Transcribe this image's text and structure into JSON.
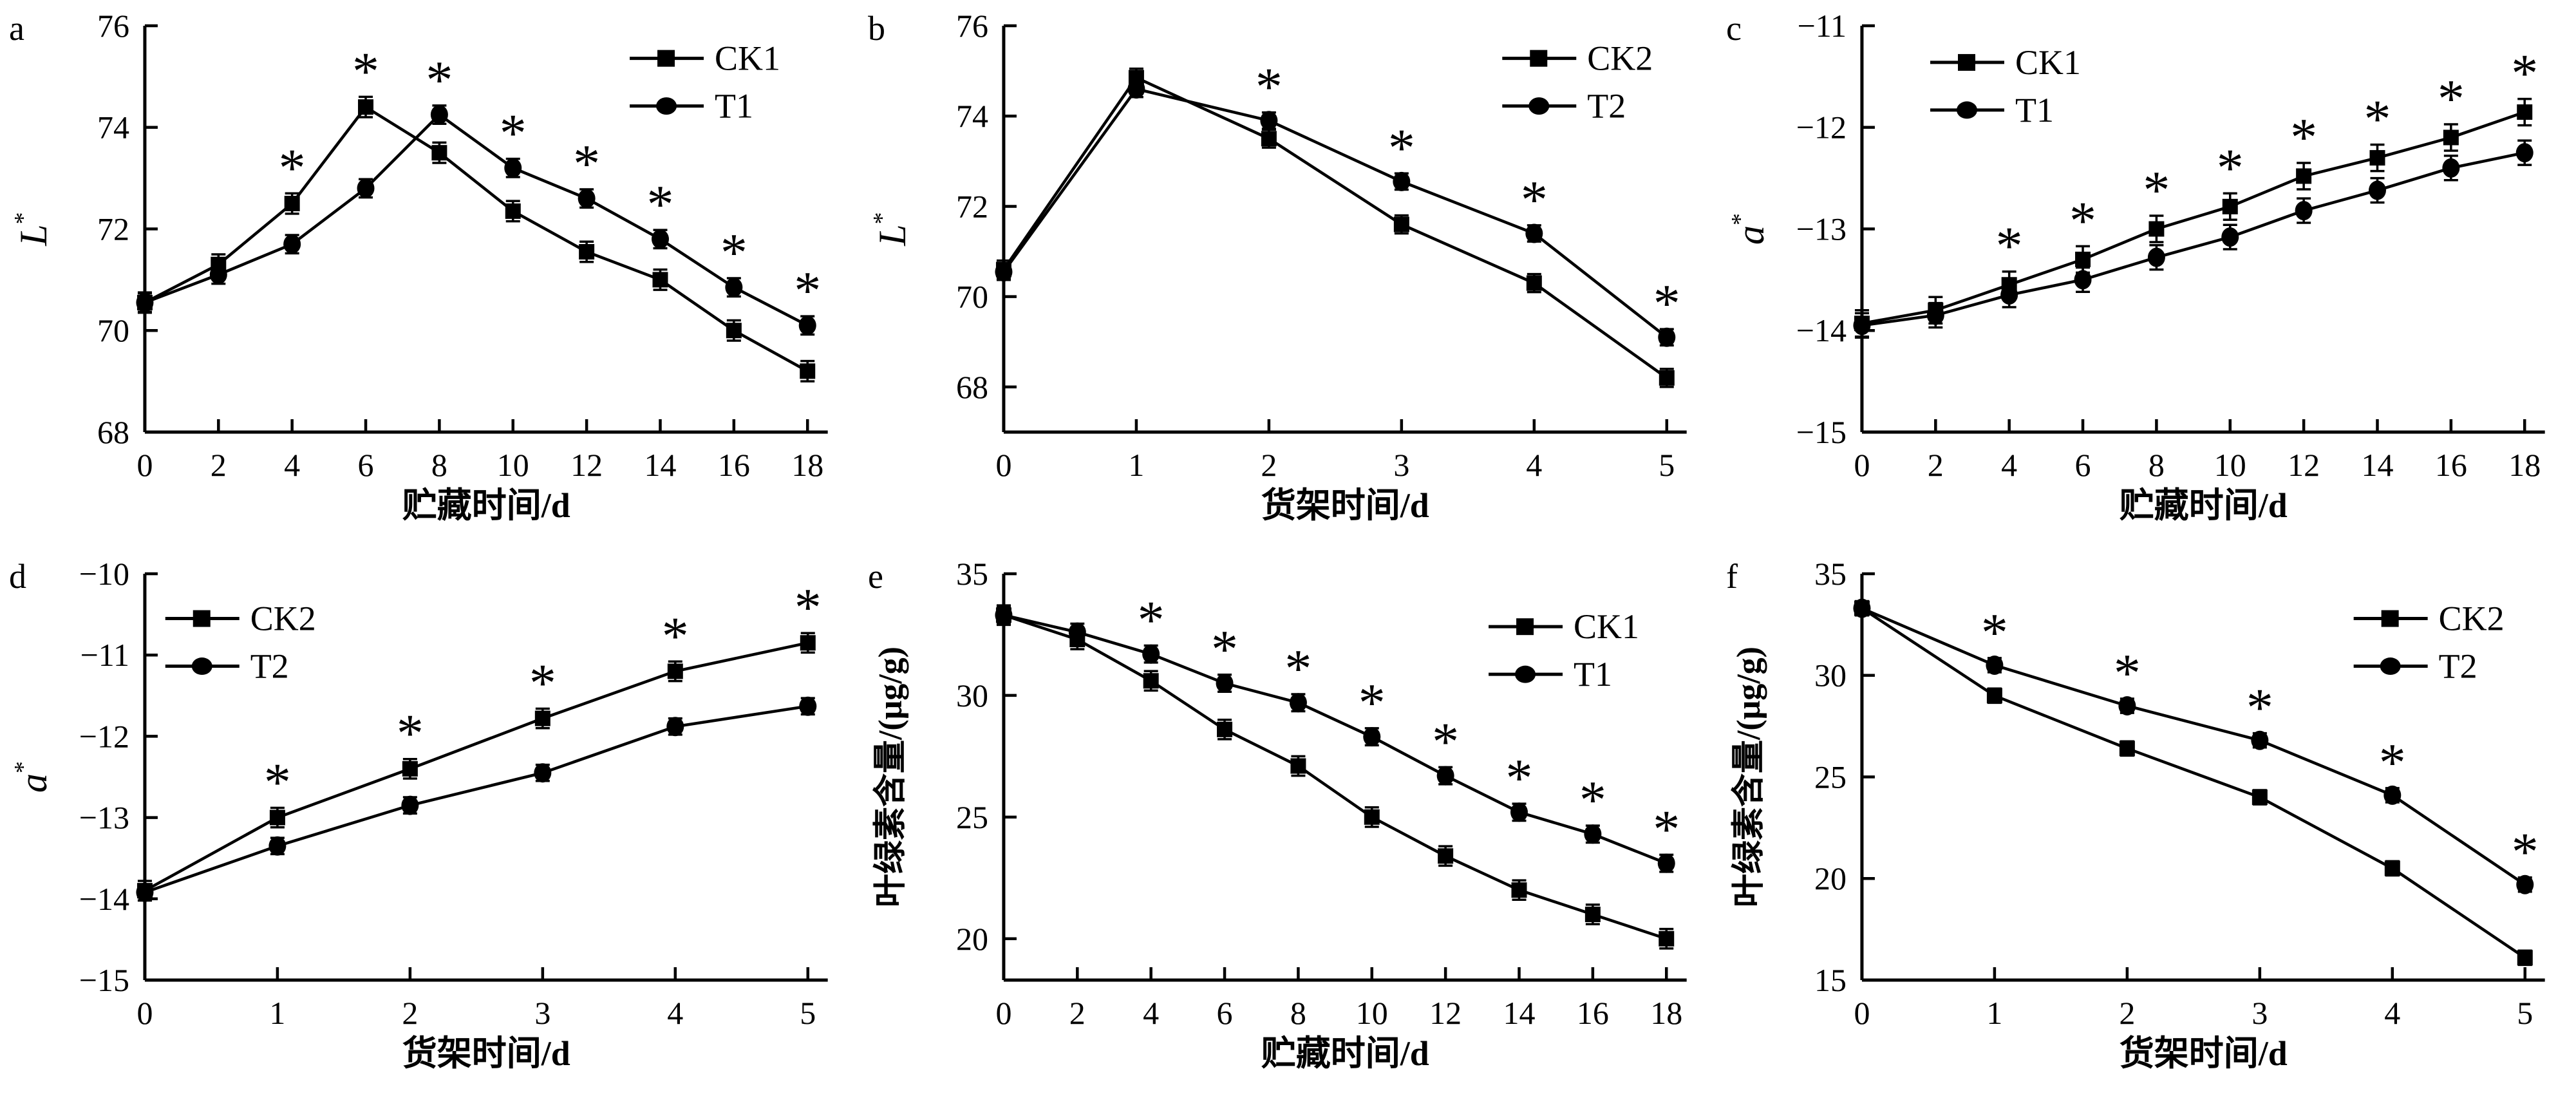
{
  "figure": {
    "background": "#ffffff",
    "ink": "#000000",
    "panels": [
      "a",
      "b",
      "c",
      "d",
      "e",
      "f"
    ],
    "x_axis_label_storage": "贮藏时间/d",
    "x_axis_label_shelf": "货架时间/d",
    "y_axis_label_lightness": "L*",
    "y_axis_label_redness": "a*",
    "y_axis_label_chlorophyll": "叶绿素含量/(μg/g)",
    "significance_symbol": "*",
    "series_names": [
      "CK1",
      "T1",
      "CK2",
      "T2"
    ]
  },
  "chart_data": [
    {
      "panel": "a",
      "type": "line",
      "x": [
        0,
        2,
        4,
        6,
        8,
        10,
        12,
        14,
        16,
        18
      ],
      "xticks": [
        0,
        2,
        4,
        6,
        8,
        10,
        12,
        14,
        16,
        18
      ],
      "yticks": [
        68,
        70,
        72,
        74,
        76
      ],
      "xlim": [
        0,
        18.55
      ],
      "ylim": [
        68,
        76
      ],
      "xlabel": "贮藏时间/d",
      "ylabel": {
        "text": "L",
        "sup": "*",
        "italic": true
      },
      "legend": {
        "x": 0.71,
        "y": 0.02
      },
      "series": [
        {
          "name": "CK1",
          "marker": "square",
          "err": 0.2,
          "values": [
            70.55,
            71.3,
            72.5,
            74.4,
            73.5,
            72.35,
            71.55,
            71.0,
            70.0,
            69.2
          ]
        },
        {
          "name": "T1",
          "marker": "circle",
          "err": 0.18,
          "values": [
            70.55,
            71.1,
            71.7,
            72.8,
            74.25,
            73.2,
            72.6,
            71.8,
            70.85,
            70.1
          ]
        }
      ],
      "asterisks": [
        {
          "x": 4,
          "series": "CK1"
        },
        {
          "x": 6,
          "series": "CK1"
        },
        {
          "x": 8,
          "series": "T1"
        },
        {
          "x": 10,
          "series": "T1"
        },
        {
          "x": 12,
          "series": "T1"
        },
        {
          "x": 14,
          "series": "T1"
        },
        {
          "x": 16,
          "series": "T1"
        },
        {
          "x": 18,
          "series": "T1"
        }
      ]
    },
    {
      "panel": "b",
      "type": "line",
      "x": [
        0,
        1,
        2,
        3,
        4,
        5
      ],
      "xticks": [
        0,
        1,
        2,
        3,
        4,
        5
      ],
      "yticks": [
        68,
        70,
        72,
        74,
        76
      ],
      "xlim": [
        0,
        5.15
      ],
      "ylim": [
        67,
        76
      ],
      "xlabel": "货架时间/d",
      "ylabel": {
        "text": "L",
        "sup": "*",
        "italic": true
      },
      "legend": {
        "x": 0.73,
        "y": 0.02
      },
      "series": [
        {
          "name": "CK2",
          "marker": "square",
          "err": 0.2,
          "values": [
            70.6,
            74.85,
            73.5,
            71.6,
            70.3,
            68.2
          ]
        },
        {
          "name": "T2",
          "marker": "circle",
          "err": 0.18,
          "values": [
            70.55,
            74.6,
            73.9,
            72.55,
            71.4,
            69.1
          ]
        }
      ],
      "asterisks": [
        {
          "x": 2,
          "series": "T2"
        },
        {
          "x": 3,
          "series": "T2"
        },
        {
          "x": 4,
          "series": "T2"
        },
        {
          "x": 5,
          "series": "T2"
        }
      ]
    },
    {
      "panel": "c",
      "type": "line",
      "x": [
        0,
        2,
        4,
        6,
        8,
        10,
        12,
        14,
        16,
        18
      ],
      "xticks": [
        0,
        2,
        4,
        6,
        8,
        10,
        12,
        14,
        16,
        18
      ],
      "yticks": [
        -15,
        -14,
        -13,
        -12,
        -11
      ],
      "xlim": [
        0,
        18.55
      ],
      "ylim": [
        -15,
        -11
      ],
      "xlabel": "贮藏时间/d",
      "ylabel": {
        "text": "a",
        "sup": "*",
        "italic": true
      },
      "legend": {
        "x": 0.1,
        "y": 0.03
      },
      "series": [
        {
          "name": "CK1",
          "marker": "square",
          "err": 0.13,
          "values": [
            -13.93,
            -13.8,
            -13.55,
            -13.3,
            -13.0,
            -12.78,
            -12.48,
            -12.3,
            -12.1,
            -11.85
          ]
        },
        {
          "name": "T1",
          "marker": "circle",
          "err": 0.12,
          "values": [
            -13.95,
            -13.85,
            -13.65,
            -13.5,
            -13.28,
            -13.08,
            -12.82,
            -12.62,
            -12.4,
            -12.25
          ]
        }
      ],
      "asterisks": [
        {
          "x": 4,
          "series": "CK1"
        },
        {
          "x": 6,
          "series": "CK1"
        },
        {
          "x": 8,
          "series": "CK1"
        },
        {
          "x": 10,
          "series": "CK1"
        },
        {
          "x": 12,
          "series": "CK1"
        },
        {
          "x": 14,
          "series": "CK1"
        },
        {
          "x": 16,
          "series": "CK1"
        },
        {
          "x": 18,
          "series": "CK1"
        }
      ]
    },
    {
      "panel": "d",
      "type": "line",
      "x": [
        0,
        1,
        2,
        3,
        4,
        5
      ],
      "xticks": [
        0,
        1,
        2,
        3,
        4,
        5
      ],
      "yticks": [
        -15,
        -14,
        -13,
        -12,
        -11,
        -10
      ],
      "xlim": [
        0,
        5.15
      ],
      "ylim": [
        -15,
        -10
      ],
      "xlabel": "货架时间/d",
      "ylabel": {
        "text": "a",
        "sup": "*",
        "italic": true
      },
      "legend": {
        "x": 0.03,
        "y": 0.05
      },
      "series": [
        {
          "name": "CK2",
          "marker": "square",
          "err": 0.12,
          "values": [
            -13.9,
            -13.0,
            -12.4,
            -11.78,
            -11.2,
            -10.85
          ]
        },
        {
          "name": "T2",
          "marker": "circle",
          "err": 0.1,
          "values": [
            -13.92,
            -13.35,
            -12.85,
            -12.45,
            -11.88,
            -11.63
          ]
        }
      ],
      "asterisks": [
        {
          "x": 1,
          "series": "CK2"
        },
        {
          "x": 2,
          "series": "CK2"
        },
        {
          "x": 3,
          "series": "CK2"
        },
        {
          "x": 4,
          "series": "CK2"
        },
        {
          "x": 5,
          "series": "CK2"
        }
      ]
    },
    {
      "panel": "e",
      "type": "line",
      "x": [
        0,
        2,
        4,
        6,
        8,
        10,
        12,
        14,
        16,
        18
      ],
      "xticks": [
        0,
        2,
        4,
        6,
        8,
        10,
        12,
        14,
        16,
        18
      ],
      "yticks": [
        20,
        25,
        30,
        35
      ],
      "xlim": [
        0,
        18.55
      ],
      "ylim": [
        18.3,
        35
      ],
      "xlabel": "贮藏时间/d",
      "ylabel": {
        "text": "叶绿素含量/(μg/g)",
        "italic": false
      },
      "legend": {
        "x": 0.71,
        "y": 0.07
      },
      "series": [
        {
          "name": "CK1",
          "marker": "square",
          "err": 0.4,
          "values": [
            33.3,
            32.3,
            30.6,
            28.6,
            27.1,
            25.0,
            23.4,
            22.0,
            21.0,
            20.0
          ]
        },
        {
          "name": "T1",
          "marker": "circle",
          "err": 0.35,
          "values": [
            33.3,
            32.6,
            31.7,
            30.5,
            29.7,
            28.3,
            26.7,
            25.2,
            24.3,
            23.1
          ]
        }
      ],
      "asterisks": [
        {
          "x": 4,
          "series": "T1"
        },
        {
          "x": 6,
          "series": "T1"
        },
        {
          "x": 8,
          "series": "T1"
        },
        {
          "x": 10,
          "series": "T1"
        },
        {
          "x": 12,
          "series": "T1"
        },
        {
          "x": 14,
          "series": "T1"
        },
        {
          "x": 16,
          "series": "T1"
        },
        {
          "x": 18,
          "series": "T1"
        }
      ]
    },
    {
      "panel": "f",
      "type": "line",
      "x": [
        0,
        1,
        2,
        3,
        4,
        5
      ],
      "xticks": [
        0,
        1,
        2,
        3,
        4,
        5
      ],
      "yticks": [
        15,
        20,
        25,
        30,
        35
      ],
      "xlim": [
        0,
        5.15
      ],
      "ylim": [
        15,
        35
      ],
      "xlabel": "货架时间/d",
      "ylabel": {
        "text": "叶绿素含量/(μg/g)",
        "italic": false
      },
      "legend": {
        "x": 0.72,
        "y": 0.05
      },
      "series": [
        {
          "name": "CK2",
          "marker": "square",
          "err": 0.35,
          "values": [
            33.3,
            29.0,
            26.4,
            24.0,
            20.5,
            16.1
          ]
        },
        {
          "name": "T2",
          "marker": "circle",
          "err": 0.35,
          "values": [
            33.3,
            30.5,
            28.5,
            26.8,
            24.1,
            19.7
          ]
        }
      ],
      "asterisks": [
        {
          "x": 1,
          "series": "T2"
        },
        {
          "x": 2,
          "series": "T2"
        },
        {
          "x": 3,
          "series": "T2"
        },
        {
          "x": 4,
          "series": "T2"
        },
        {
          "x": 5,
          "series": "T2"
        }
      ]
    }
  ]
}
